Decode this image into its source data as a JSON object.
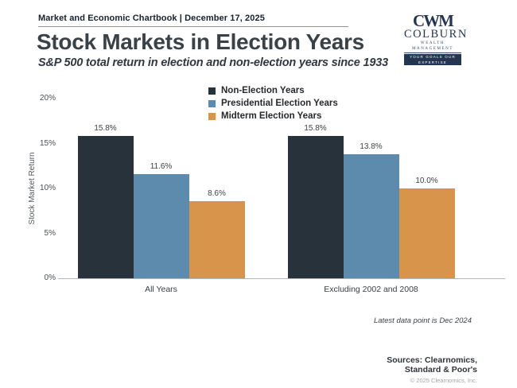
{
  "header": {
    "chartbook_label": "Market and Economic Chartbook | December 17, 2025",
    "title": "Stock Markets in Election Years",
    "subtitle": "S&P 500 total return in election and non-election years since 1933"
  },
  "logo": {
    "monogram": "CWM",
    "name": "COLBURN",
    "tagline_top": "WEALTH MANAGEMENT",
    "tagline_bottom": "YOUR GOALS OUR EXPERTISE",
    "brand_color": "#243552"
  },
  "chart_data": {
    "type": "bar",
    "title": "Stock Markets in Election Years",
    "subtitle": "S&P 500 total return in election and non-election years since 1933",
    "ylabel": "Stock Market Return",
    "xlabel": "",
    "ylim": [
      0,
      20
    ],
    "yticks": [
      0,
      5,
      10,
      15,
      20
    ],
    "ytick_suffix": "%",
    "grid": false,
    "legend_position": "top-center",
    "categories": [
      "All Years",
      "Excluding 2002 and 2008"
    ],
    "series": [
      {
        "name": "Non-Election Years",
        "color": "#28323b",
        "values": [
          15.8,
          15.8
        ]
      },
      {
        "name": "Presidential Election Years",
        "color": "#5d8bae",
        "values": [
          11.6,
          13.8
        ]
      },
      {
        "name": "Midterm Election Years",
        "color": "#d8944a",
        "values": [
          8.6,
          10.0
        ]
      }
    ]
  },
  "footnotes": {
    "latest_data": "Latest data point is Dec 2024",
    "sources_line1": "Sources: Clearnomics,",
    "sources_line2": "Standard & Poor's",
    "copyright": "© 2025 Clearnomics, Inc."
  }
}
